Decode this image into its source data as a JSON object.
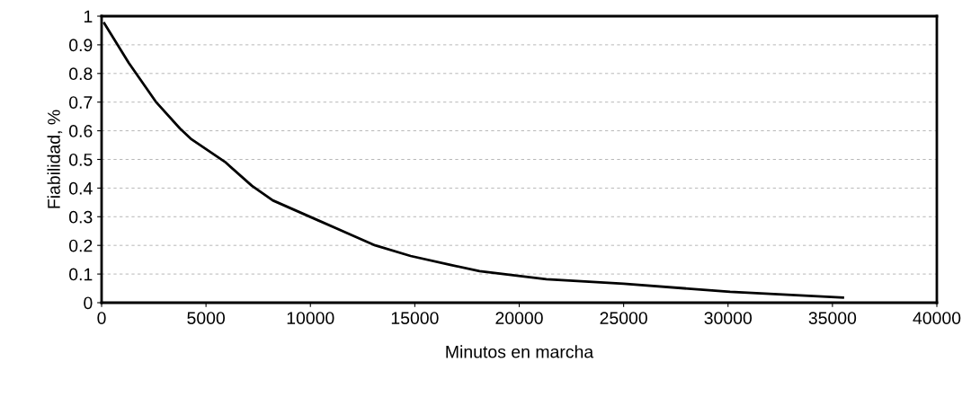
{
  "chart_data": {
    "type": "line",
    "xlabel": "Minutos en marcha",
    "ylabel": "Fiabilidad, %",
    "x": [
      130,
      1300,
      2590,
      3750,
      4310,
      5900,
      7200,
      8200,
      10350,
      13100,
      14800,
      16700,
      18100,
      21300,
      25000,
      30100,
      35500
    ],
    "series": [
      {
        "color": "#000000",
        "values": [
          0.975,
          0.837,
          0.702,
          0.608,
          0.57,
          0.492,
          0.408,
          0.357,
          0.288,
          0.2,
          0.163,
          0.132,
          0.11,
          0.082,
          0.066,
          0.038,
          0.018
        ]
      }
    ],
    "xlim": [
      0,
      40000
    ],
    "xticks": [
      0,
      5000,
      10000,
      15000,
      20000,
      25000,
      30000,
      35000,
      40000
    ],
    "ylim": [
      0,
      1
    ],
    "yticks": [
      0,
      0.1,
      0.2,
      0.3,
      0.4,
      0.5,
      0.6,
      0.7,
      0.8,
      0.9,
      1
    ],
    "grid": "y",
    "marker": "none",
    "line_style": "solid"
  }
}
